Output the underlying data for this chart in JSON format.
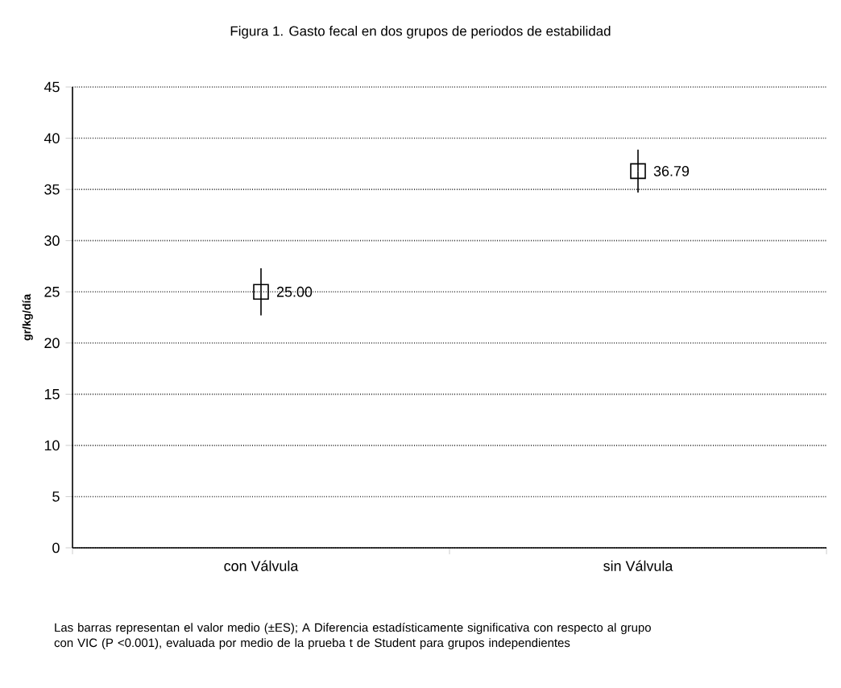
{
  "chart_data": {
    "type": "scatter",
    "title": "Figura 1. Gasto fecal en dos grupos de periodos de estabilidad",
    "ylabel": "gr/kg/día",
    "categories": [
      "con Válvula",
      "sin Válvula"
    ],
    "values": [
      25.0,
      36.79
    ],
    "errors": [
      2.3,
      2.1
    ],
    "value_labels": [
      "25.00",
      "36.79"
    ],
    "color": "#000000",
    "marker": "square",
    "ylim": [
      0,
      45
    ],
    "yticks": [
      0,
      5,
      10,
      15,
      20,
      25,
      30,
      35,
      40,
      45
    ],
    "grid": "y",
    "annotations": [
      "Las barras representan el valor medio (±ES); A Diferencia estadísticamente significativa con respecto al grupo con VIC (P <0.001), evaluada por medio de la prueba t de Student para grupos independientes"
    ]
  }
}
